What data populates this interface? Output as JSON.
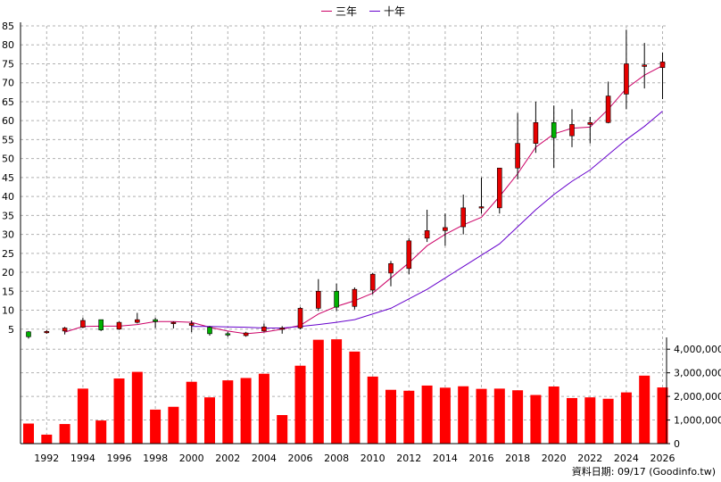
{
  "legend": {
    "ma3_label": "三年",
    "ma10_label": "十年"
  },
  "source": "資料日期: 09/17  (Goodinfo.tw)",
  "colors": {
    "up": "#e60000",
    "down": "#00b000",
    "ma3": "#cc0066",
    "ma10": "#6600cc",
    "volume": "#ff0000",
    "grid": "#b0b0b0"
  },
  "chart_data": [
    {
      "type": "candlestick",
      "title": "",
      "ylim": [
        0,
        85
      ],
      "y_ticks": [
        5,
        10,
        15,
        20,
        25,
        30,
        35,
        40,
        45,
        50,
        55,
        60,
        65,
        70,
        75,
        80,
        85
      ],
      "x_tick_labels": [
        "1992",
        "1994",
        "1996",
        "1998",
        "2000",
        "2002",
        "2004",
        "2006",
        "2008",
        "2010",
        "2012",
        "2014",
        "2016",
        "2018",
        "2020",
        "2022",
        "2024",
        "2026"
      ],
      "grid": true,
      "candles": [
        {
          "year": 1991,
          "open": 4.3,
          "close": 3.0,
          "high": 4.5,
          "low": 2.5
        },
        {
          "year": 1992,
          "open": 4.2,
          "close": 4.4,
          "high": 4.8,
          "low": 3.8
        },
        {
          "year": 1993,
          "open": 4.5,
          "close": 5.3,
          "high": 5.6,
          "low": 3.6
        },
        {
          "year": 1994,
          "open": 5.5,
          "close": 7.3,
          "high": 8.0,
          "low": 5.3
        },
        {
          "year": 1995,
          "open": 7.5,
          "close": 4.8,
          "high": 7.5,
          "low": 4.5
        },
        {
          "year": 1996,
          "open": 5.0,
          "close": 6.8,
          "high": 7.0,
          "low": 4.8
        },
        {
          "year": 1997,
          "open": 6.8,
          "close": 7.5,
          "high": 9.3,
          "low": 6.5
        },
        {
          "year": 1998,
          "open": 7.5,
          "close": 7.0,
          "high": 8.0,
          "low": 5.3
        },
        {
          "year": 1999,
          "open": 6.6,
          "close": 6.8,
          "high": 7.0,
          "low": 5.2
        },
        {
          "year": 2000,
          "open": 6.0,
          "close": 6.5,
          "high": 7.3,
          "low": 4.2
        },
        {
          "year": 2001,
          "open": 5.5,
          "close": 3.8,
          "high": 5.8,
          "low": 3.3
        },
        {
          "year": 2002,
          "open": 3.8,
          "close": 3.5,
          "high": 4.3,
          "low": 3.0
        },
        {
          "year": 2003,
          "open": 3.3,
          "close": 4.0,
          "high": 4.3,
          "low": 3.0
        },
        {
          "year": 2004,
          "open": 4.5,
          "close": 5.6,
          "high": 6.5,
          "low": 4.3
        },
        {
          "year": 2005,
          "open": 5.0,
          "close": 5.3,
          "high": 5.8,
          "low": 3.8
        },
        {
          "year": 2006,
          "open": 5.3,
          "close": 10.5,
          "high": 10.8,
          "low": 5.0
        },
        {
          "year": 2007,
          "open": 10.5,
          "close": 15.0,
          "high": 18.2,
          "low": 9.8
        },
        {
          "year": 2008,
          "open": 15.0,
          "close": 10.8,
          "high": 17.0,
          "low": 9.8
        },
        {
          "year": 2009,
          "open": 11.0,
          "close": 15.5,
          "high": 16.0,
          "low": 10.2
        },
        {
          "year": 2010,
          "open": 15.3,
          "close": 19.5,
          "high": 19.8,
          "low": 14.2
        },
        {
          "year": 2011,
          "open": 19.8,
          "close": 22.3,
          "high": 23.0,
          "low": 16.3
        },
        {
          "year": 2012,
          "open": 21.0,
          "close": 28.3,
          "high": 29.0,
          "low": 19.5
        },
        {
          "year": 2013,
          "open": 29.0,
          "close": 31.0,
          "high": 36.5,
          "low": 28.0
        },
        {
          "year": 2014,
          "open": 31.0,
          "close": 31.8,
          "high": 35.5,
          "low": 27.0
        },
        {
          "year": 2015,
          "open": 32.0,
          "close": 37.0,
          "high": 40.5,
          "low": 30.0
        },
        {
          "year": 2016,
          "open": 37.0,
          "close": 37.3,
          "high": 45.0,
          "low": 35.5
        },
        {
          "year": 2017,
          "open": 37.0,
          "close": 47.5,
          "high": 47.5,
          "low": 35.5
        },
        {
          "year": 2018,
          "open": 47.5,
          "close": 54.0,
          "high": 62.0,
          "low": 44.5
        },
        {
          "year": 2019,
          "open": 54.0,
          "close": 59.5,
          "high": 65.0,
          "low": 51.5
        },
        {
          "year": 2020,
          "open": 59.5,
          "close": 55.5,
          "high": 64.0,
          "low": 47.5
        },
        {
          "year": 2021,
          "open": 56.0,
          "close": 59.0,
          "high": 63.0,
          "low": 53.0
        },
        {
          "year": 2022,
          "open": 59.0,
          "close": 59.5,
          "high": 61.0,
          "low": 54.0
        },
        {
          "year": 2023,
          "open": 59.5,
          "close": 66.5,
          "high": 70.3,
          "low": 59.3
        },
        {
          "year": 2024,
          "open": 67.0,
          "close": 75.0,
          "high": 84.0,
          "low": 63.0
        },
        {
          "year": 2025,
          "open": 74.3,
          "close": 74.7,
          "high": 80.5,
          "low": 68.5
        },
        {
          "year": 2026,
          "open": 74.0,
          "close": 75.5,
          "high": 78.0,
          "low": 65.7
        }
      ],
      "series": [
        {
          "name": "三年",
          "years": [
            1993,
            1994,
            1995,
            1996,
            1997,
            1998,
            1999,
            2000,
            2001,
            2002,
            2003,
            2004,
            2005,
            2006,
            2007,
            2008,
            2009,
            2010,
            2011,
            2012,
            2013,
            2014,
            2015,
            2016,
            2017,
            2018,
            2019,
            2020,
            2021,
            2022,
            2023,
            2024,
            2025,
            2026
          ],
          "values": [
            4.2,
            5.7,
            5.8,
            5.8,
            6.2,
            7.0,
            7.0,
            6.8,
            5.5,
            4.5,
            3.8,
            4.2,
            5.0,
            6.0,
            9.0,
            11.0,
            12.5,
            14.5,
            18.5,
            22.5,
            27.0,
            30.0,
            32.5,
            34.5,
            40.0,
            46.0,
            53.0,
            56.5,
            58.0,
            58.3,
            63.0,
            68.5,
            72.0,
            74.5
          ]
        },
        {
          "name": "十年",
          "years": [
            2000,
            2001,
            2002,
            2003,
            2004,
            2005,
            2006,
            2007,
            2008,
            2009,
            2010,
            2011,
            2012,
            2013,
            2014,
            2015,
            2016,
            2017,
            2018,
            2019,
            2020,
            2021,
            2022,
            2023,
            2024,
            2025,
            2026
          ],
          "values": [
            5.7,
            5.7,
            5.6,
            5.5,
            5.3,
            5.3,
            5.7,
            6.2,
            6.8,
            7.5,
            9.0,
            10.5,
            13.0,
            15.5,
            18.5,
            21.5,
            24.5,
            27.5,
            32.0,
            36.5,
            40.5,
            44.0,
            47.0,
            51.0,
            55.0,
            58.5,
            62.5
          ]
        }
      ]
    },
    {
      "type": "bar",
      "title": "",
      "ylim": [
        0,
        4500000
      ],
      "y_tick_labels": [
        "0",
        "1,000,000",
        "2,000,000",
        "3,000,000",
        "4,000,000"
      ],
      "y_ticks": [
        0,
        1000000,
        2000000,
        3000000,
        4000000
      ],
      "categories": [
        1991,
        1992,
        1993,
        1994,
        1995,
        1996,
        1997,
        1998,
        1999,
        2000,
        2001,
        2002,
        2003,
        2004,
        2005,
        2006,
        2007,
        2008,
        2009,
        2010,
        2011,
        2012,
        2013,
        2014,
        2015,
        2016,
        2017,
        2018,
        2019,
        2020,
        2021,
        2022,
        2023,
        2024,
        2025,
        2026
      ],
      "values": [
        850000,
        380000,
        830000,
        2330000,
        980000,
        2760000,
        3040000,
        1440000,
        1560000,
        2620000,
        1960000,
        2680000,
        2780000,
        2960000,
        1210000,
        3300000,
        4400000,
        4420000,
        3900000,
        2840000,
        2280000,
        2240000,
        2460000,
        2370000,
        2430000,
        2320000,
        2330000,
        2260000,
        2060000,
        2420000,
        1930000,
        1960000,
        1900000,
        2170000,
        2880000,
        2380000
      ]
    }
  ]
}
